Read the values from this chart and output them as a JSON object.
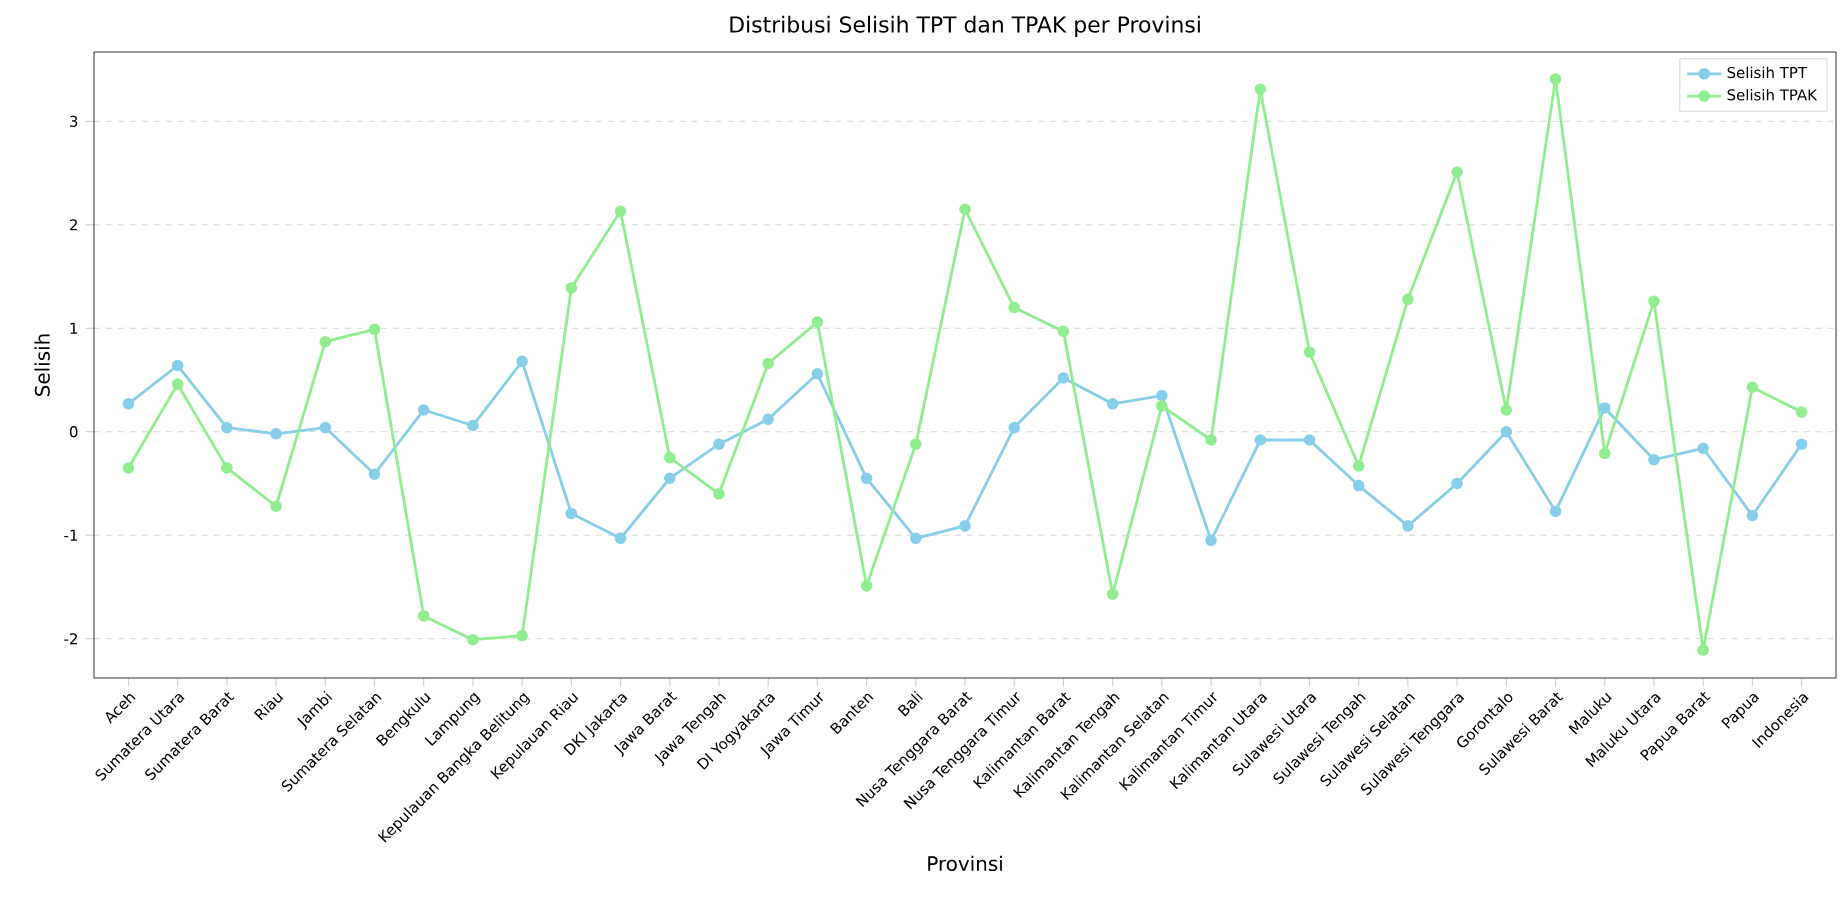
{
  "chart_data": {
    "type": "line",
    "title": "Distribusi Selisih TPT dan TPAK per Provinsi",
    "xlabel": "Provinsi",
    "ylabel": "Selisih",
    "categories": [
      "Aceh",
      "Sumatera Utara",
      "Sumatera Barat",
      "Riau",
      "Jambi",
      "Sumatera Selatan",
      "Bengkulu",
      "Lampung",
      "Kepulauan Bangka Belitung",
      "Kepulauan Riau",
      "DKI Jakarta",
      "Jawa Barat",
      "Jawa Tengah",
      "DI Yogyakarta",
      "Jawa Timur",
      "Banten",
      "Bali",
      "Nusa Tenggara Barat",
      "Nusa Tenggara Timur",
      "Kalimantan Barat",
      "Kalimantan Tengah",
      "Kalimantan Selatan",
      "Kalimantan Timur",
      "Kalimantan Utara",
      "Sulawesi Utara",
      "Sulawesi Tengah",
      "Sulawesi Selatan",
      "Sulawesi Tenggara",
      "Gorontalo",
      "Sulawesi Barat",
      "Maluku",
      "Maluku Utara",
      "Papua Barat",
      "Papua",
      "Indonesia"
    ],
    "series": [
      {
        "name": "Selisih TPT",
        "color": "#87ceeb",
        "values": [
          0.27,
          0.64,
          0.04,
          -0.02,
          0.04,
          -0.41,
          0.21,
          0.06,
          0.68,
          -0.79,
          -1.03,
          -0.45,
          -0.12,
          0.12,
          0.56,
          -0.45,
          -1.03,
          -0.91,
          0.04,
          0.52,
          0.27,
          0.35,
          -1.05,
          -0.08,
          -0.08,
          -0.52,
          -0.91,
          -0.5,
          0.0,
          -0.77,
          0.23,
          -0.27,
          -0.16,
          -0.81,
          -0.12
        ]
      },
      {
        "name": "Selisih TPAK",
        "color": "#90ee90",
        "values": [
          -0.35,
          0.46,
          -0.35,
          -0.72,
          0.87,
          0.99,
          -1.78,
          -2.01,
          -1.97,
          1.39,
          2.13,
          -0.25,
          -0.6,
          0.66,
          1.06,
          -1.49,
          -0.12,
          2.15,
          1.2,
          0.97,
          -1.57,
          0.25,
          -0.08,
          3.31,
          0.77,
          -0.33,
          1.28,
          2.51,
          0.21,
          3.41,
          -0.21,
          1.26,
          -2.11,
          0.43,
          0.19
        ]
      }
    ],
    "ylim": [
      -2.38,
      3.67
    ],
    "yticks": [
      -2,
      -1,
      0,
      1,
      2,
      3
    ],
    "grid": "y",
    "legend": "top right",
    "marker": "circle",
    "line_style": "solid"
  }
}
